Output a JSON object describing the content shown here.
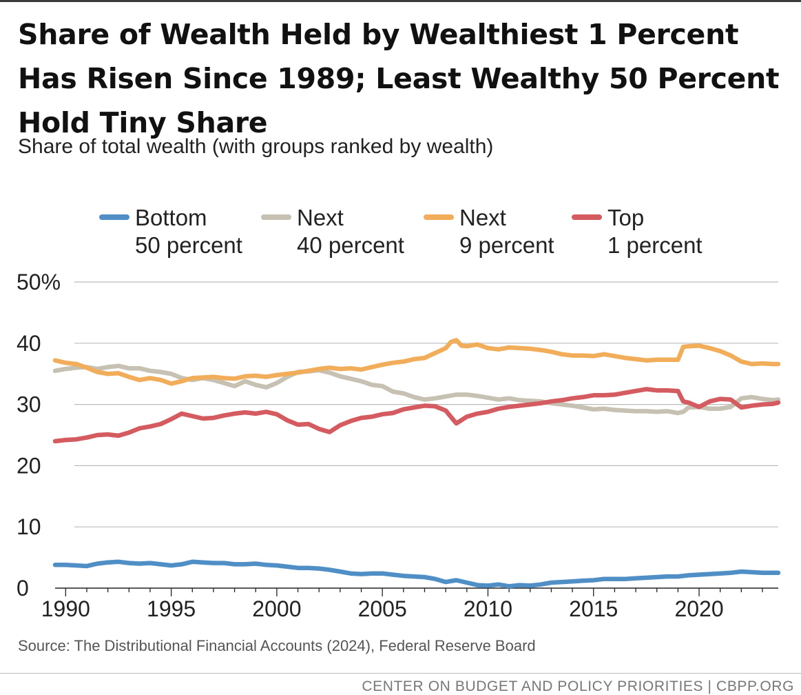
{
  "header": {
    "title": "Share of Wealth Held by Wealthiest 1 Percent Has Risen Since 1989; Least Wealthy 50 Percent Hold Tiny Share",
    "subtitle": "Share of total wealth (with groups ranked by wealth)"
  },
  "footer": {
    "source": "Source: The Distributional Financial Accounts (2024), Federal Reserve Board",
    "credit": "CENTER ON BUDGET AND POLICY PRIORITIES | CBPP.ORG"
  },
  "colors": {
    "bottom50": "#4f8fc6",
    "next40": "#c7c1b3",
    "next9": "#f2ad5a",
    "top1": "#d45b60",
    "grid": "#bbbbbb"
  },
  "chart_data": {
    "type": "line",
    "title": "Share of total wealth (with groups ranked by wealth)",
    "xlabel": "",
    "ylabel": "",
    "xlim": [
      1989.5,
      2023.75
    ],
    "ylim": [
      0,
      50
    ],
    "y_ticks": [
      0,
      10,
      20,
      30,
      40,
      50
    ],
    "y_tick_labels": [
      "0",
      "10",
      "20",
      "30",
      "40",
      "50%"
    ],
    "x_ticks": [
      1990,
      1995,
      2000,
      2005,
      2010,
      2015,
      2020
    ],
    "x_tick_labels": [
      "1990",
      "1995",
      "2000",
      "2005",
      "2010",
      "2015",
      "2020"
    ],
    "grid": true,
    "legend_position": "top",
    "series": [
      {
        "name": "Bottom 50 percent",
        "legend_lines": [
          "Bottom",
          "50 percent"
        ],
        "color_key": "bottom50",
        "x": [
          1989.5,
          1990,
          1990.5,
          1991,
          1991.5,
          1992,
          1992.5,
          1993,
          1993.5,
          1994,
          1994.5,
          1995,
          1995.5,
          1996,
          1996.5,
          1997,
          1997.5,
          1998,
          1998.5,
          1999,
          1999.5,
          2000,
          2000.5,
          2001,
          2001.5,
          2002,
          2002.5,
          2003,
          2003.5,
          2004,
          2004.5,
          2005,
          2005.5,
          2006,
          2006.5,
          2007,
          2007.5,
          2008,
          2008.5,
          2009,
          2009.5,
          2010,
          2010.5,
          2011,
          2011.5,
          2012,
          2012.5,
          2013,
          2013.5,
          2014,
          2014.5,
          2015,
          2015.5,
          2016,
          2016.5,
          2017,
          2017.5,
          2018,
          2018.5,
          2019,
          2019.5,
          2020,
          2020.5,
          2021,
          2021.5,
          2022,
          2022.5,
          2023,
          2023.5,
          2023.75
        ],
        "values": [
          3.8,
          3.8,
          3.7,
          3.6,
          4.0,
          4.2,
          4.3,
          4.1,
          4.0,
          4.1,
          3.9,
          3.7,
          3.9,
          4.3,
          4.2,
          4.1,
          4.1,
          3.9,
          3.9,
          4.0,
          3.8,
          3.7,
          3.5,
          3.3,
          3.3,
          3.2,
          3.0,
          2.7,
          2.4,
          2.3,
          2.4,
          2.4,
          2.2,
          2.0,
          1.9,
          1.8,
          1.5,
          1.0,
          1.3,
          0.9,
          0.5,
          0.4,
          0.6,
          0.3,
          0.5,
          0.4,
          0.6,
          0.9,
          1.0,
          1.1,
          1.2,
          1.3,
          1.5,
          1.5,
          1.5,
          1.6,
          1.7,
          1.8,
          1.9,
          1.9,
          2.1,
          2.2,
          2.3,
          2.4,
          2.5,
          2.7,
          2.6,
          2.5,
          2.5,
          2.5
        ]
      },
      {
        "name": "Next 40 percent",
        "legend_lines": [
          "Next",
          "40 percent"
        ],
        "color_key": "next40",
        "x": [
          1989.5,
          1990,
          1990.5,
          1991,
          1991.5,
          1992,
          1992.5,
          1993,
          1993.5,
          1994,
          1994.5,
          1995,
          1995.5,
          1996,
          1996.5,
          1997,
          1997.5,
          1998,
          1998.5,
          1999,
          1999.5,
          2000,
          2000.5,
          2001,
          2001.5,
          2002,
          2002.5,
          2003,
          2003.5,
          2004,
          2004.5,
          2005,
          2005.5,
          2006,
          2006.5,
          2007,
          2007.5,
          2008,
          2008.5,
          2009,
          2009.5,
          2010,
          2010.5,
          2011,
          2011.5,
          2012,
          2012.5,
          2013,
          2013.5,
          2014,
          2014.5,
          2015,
          2015.5,
          2016,
          2016.5,
          2017,
          2017.5,
          2018,
          2018.5,
          2019,
          2019.25,
          2019.5,
          2020,
          2020.5,
          2021,
          2021.5,
          2022,
          2022.5,
          2023,
          2023.5,
          2023.75
        ],
        "values": [
          35.5,
          35.8,
          36.0,
          36.1,
          35.8,
          36.1,
          36.3,
          35.9,
          35.9,
          35.5,
          35.3,
          35.0,
          34.3,
          34.0,
          34.3,
          34.0,
          33.5,
          33.0,
          33.8,
          33.2,
          32.8,
          33.5,
          34.5,
          35.3,
          35.4,
          35.6,
          35.2,
          34.6,
          34.2,
          33.8,
          33.2,
          33.0,
          32.1,
          31.8,
          31.2,
          30.8,
          31.0,
          31.3,
          31.6,
          31.6,
          31.4,
          31.1,
          30.8,
          31.0,
          30.7,
          30.6,
          30.5,
          30.2,
          30.0,
          29.8,
          29.5,
          29.2,
          29.3,
          29.1,
          29.0,
          28.9,
          28.9,
          28.8,
          28.9,
          28.6,
          28.8,
          29.5,
          29.6,
          29.3,
          29.3,
          29.6,
          31.0,
          31.2,
          30.9,
          30.7,
          30.8
        ]
      },
      {
        "name": "Next 9 percent",
        "legend_lines": [
          "Next",
          "9 percent"
        ],
        "color_key": "next9",
        "x": [
          1989.5,
          1990,
          1990.5,
          1991,
          1991.5,
          1992,
          1992.5,
          1993,
          1993.5,
          1994,
          1994.5,
          1995,
          1995.5,
          1996,
          1996.5,
          1997,
          1997.5,
          1998,
          1998.5,
          1999,
          1999.5,
          2000,
          2000.5,
          2001,
          2001.5,
          2002,
          2002.5,
          2003,
          2003.5,
          2004,
          2004.5,
          2005,
          2005.5,
          2006,
          2006.5,
          2007,
          2007.5,
          2008,
          2008.25,
          2008.5,
          2008.75,
          2009,
          2009.5,
          2010,
          2010.5,
          2011,
          2011.5,
          2012,
          2012.5,
          2013,
          2013.5,
          2014,
          2014.5,
          2015,
          2015.5,
          2016,
          2016.5,
          2017,
          2017.5,
          2018,
          2018.5,
          2019,
          2019.25,
          2019.5,
          2020,
          2020.5,
          2021,
          2021.5,
          2022,
          2022.5,
          2023,
          2023.5,
          2023.75
        ],
        "values": [
          37.2,
          36.8,
          36.6,
          36.0,
          35.3,
          35.0,
          35.1,
          34.5,
          34.0,
          34.3,
          34.0,
          33.4,
          33.8,
          34.3,
          34.4,
          34.5,
          34.3,
          34.2,
          34.6,
          34.7,
          34.5,
          34.8,
          35.0,
          35.2,
          35.5,
          35.8,
          36.0,
          35.8,
          35.9,
          35.7,
          36.1,
          36.5,
          36.8,
          37.0,
          37.4,
          37.6,
          38.4,
          39.2,
          40.2,
          40.5,
          39.6,
          39.5,
          39.8,
          39.2,
          39.0,
          39.3,
          39.2,
          39.1,
          38.9,
          38.6,
          38.2,
          38.0,
          38.0,
          37.9,
          38.2,
          37.9,
          37.6,
          37.4,
          37.2,
          37.3,
          37.3,
          37.3,
          39.4,
          39.5,
          39.6,
          39.2,
          38.7,
          38.0,
          37.0,
          36.6,
          36.7,
          36.6,
          36.6
        ]
      },
      {
        "name": "Top 1 percent",
        "legend_lines": [
          "Top",
          "1 percent"
        ],
        "color_key": "top1",
        "x": [
          1989.5,
          1990,
          1990.5,
          1991,
          1991.5,
          1992,
          1992.5,
          1993,
          1993.5,
          1994,
          1994.5,
          1995,
          1995.5,
          1996,
          1996.5,
          1997,
          1997.5,
          1998,
          1998.5,
          1999,
          1999.5,
          2000,
          2000.5,
          2001,
          2001.5,
          2002,
          2002.5,
          2003,
          2003.5,
          2004,
          2004.5,
          2005,
          2005.5,
          2006,
          2006.5,
          2007,
          2007.5,
          2008,
          2008.5,
          2009,
          2009.5,
          2010,
          2010.5,
          2011,
          2011.5,
          2012,
          2012.5,
          2013,
          2013.5,
          2014,
          2014.5,
          2015,
          2015.5,
          2016,
          2016.5,
          2017,
          2017.5,
          2018,
          2018.5,
          2019,
          2019.25,
          2019.5,
          2020,
          2020.5,
          2021,
          2021.5,
          2022,
          2022.5,
          2023,
          2023.5,
          2023.75
        ],
        "values": [
          24.0,
          24.2,
          24.3,
          24.6,
          25.0,
          25.1,
          24.9,
          25.4,
          26.1,
          26.4,
          26.8,
          27.6,
          28.5,
          28.1,
          27.7,
          27.8,
          28.2,
          28.5,
          28.7,
          28.5,
          28.8,
          28.4,
          27.4,
          26.7,
          26.8,
          26.0,
          25.5,
          26.6,
          27.3,
          27.8,
          28.0,
          28.4,
          28.6,
          29.2,
          29.5,
          29.8,
          29.7,
          29.0,
          26.9,
          28.0,
          28.5,
          28.8,
          29.3,
          29.6,
          29.8,
          30.0,
          30.2,
          30.5,
          30.7,
          31.0,
          31.2,
          31.5,
          31.5,
          31.6,
          31.9,
          32.2,
          32.5,
          32.3,
          32.3,
          32.2,
          30.5,
          30.3,
          29.6,
          30.5,
          30.9,
          30.8,
          29.5,
          29.8,
          30.0,
          30.1,
          30.3
        ]
      }
    ]
  }
}
